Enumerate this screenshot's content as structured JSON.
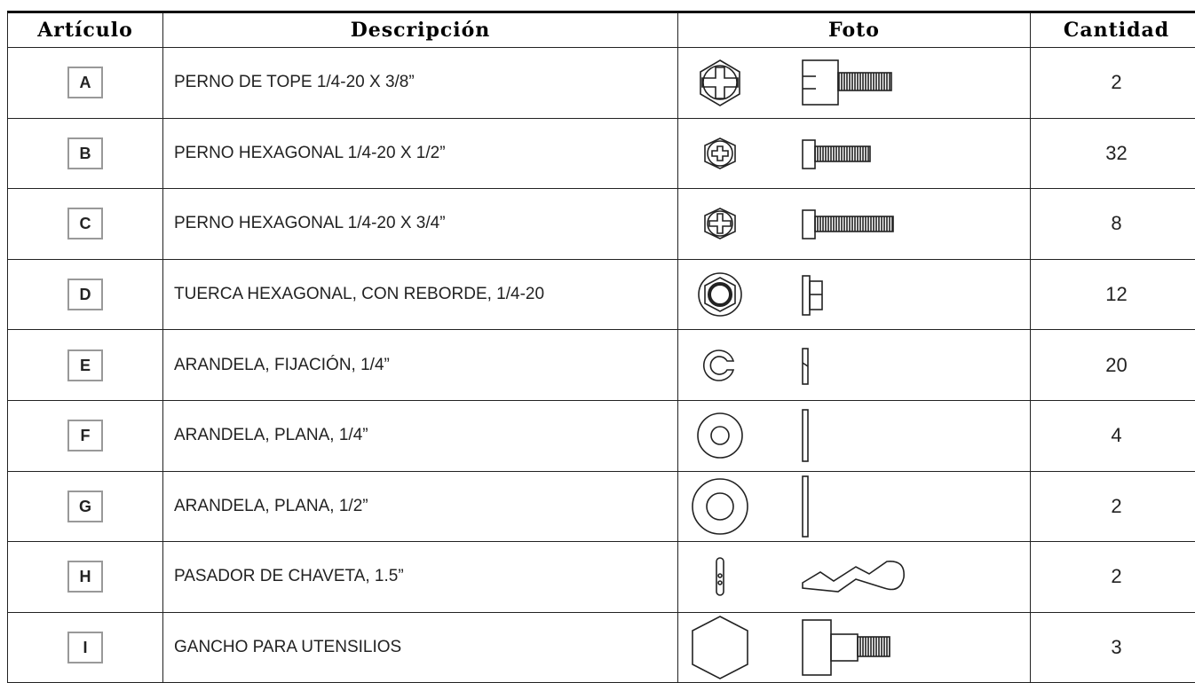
{
  "header": {
    "item": "Artículo",
    "description": "Descripción",
    "photo": "Foto",
    "quantity": "Cantidad"
  },
  "rows": [
    {
      "item": "A",
      "description": "PERNO DE TOPE 1/4-20 X 3/8”",
      "quantity": 2
    },
    {
      "item": "B",
      "description": "PERNO HEXAGONAL 1/4-20 X 1/2”",
      "quantity": 32
    },
    {
      "item": "C",
      "description": "PERNO HEXAGONAL 1/4-20 X 3/4”",
      "quantity": 8
    },
    {
      "item": "D",
      "description": "TUERCA HEXAGONAL, CON REBORDE, 1/4-20",
      "quantity": 12
    },
    {
      "item": "E",
      "description": "ARANDELA, FIJACIÓN, 1/4”",
      "quantity": 20
    },
    {
      "item": "F",
      "description": "ARANDELA, PLANA, 1/4”",
      "quantity": 4
    },
    {
      "item": "G",
      "description": "ARANDELA, PLANA, 1/2”",
      "quantity": 2
    },
    {
      "item": "H",
      "description": "PASADOR DE CHAVETA, 1.5”",
      "quantity": 2
    },
    {
      "item": "I",
      "description": "GANCHO PARA UTENSILIOS",
      "quantity": 3
    }
  ]
}
